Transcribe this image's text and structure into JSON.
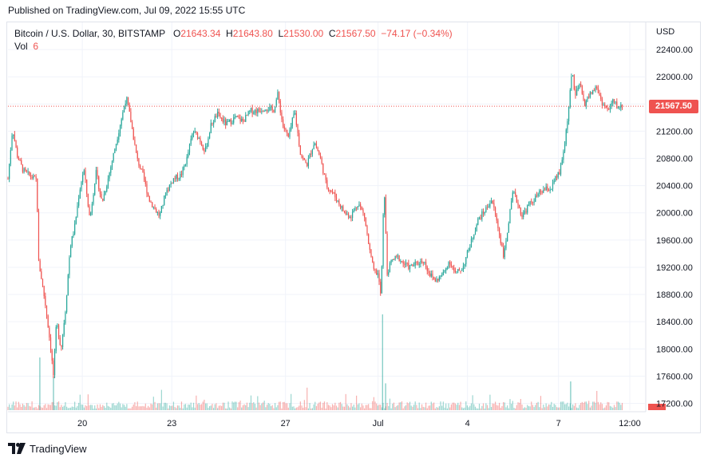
{
  "header": {
    "published": "Published on TradingView.com, Jul 09, 2022 15:55 UTC"
  },
  "legend": {
    "symbol": "Bitcoin / U.S. Dollar, 30, BITSTAMP",
    "o_label": "O",
    "o_value": "21643.34",
    "h_label": "H",
    "h_value": "21643.80",
    "l_label": "L",
    "l_value": "21530.00",
    "c_label": "C",
    "c_value": "21567.50",
    "change": "−74.17 (−0.34%)",
    "vol_label": "Vol",
    "vol_value": "6"
  },
  "axis": {
    "currency": "USD"
  },
  "footer": {
    "brand": "TradingView"
  },
  "colors": {
    "up": "#26a69a",
    "down": "#ef5350",
    "grid": "#f0f3fa"
  },
  "chart_data": {
    "type": "candlestick",
    "symbol": "Bitcoin / U.S. Dollar, 30, BITSTAMP",
    "current_price": 21567.5,
    "current_price_label": "21567.50",
    "y_axis": {
      "ticks": [
        22400,
        22000,
        21600,
        21200,
        20800,
        20400,
        20000,
        19600,
        19200,
        18800,
        18400,
        18000,
        17600,
        17200
      ],
      "tick_labels": [
        "22400.00",
        "22000.00",
        "21600.00",
        "21200.00",
        "20800.00",
        "20400.00",
        "20000.00",
        "19600.00",
        "19200.00",
        "18800.00",
        "18400.00",
        "18000.00",
        "17600.00",
        "17200.00"
      ],
      "ylim": [
        17100,
        22800
      ]
    },
    "x_axis": {
      "tick_labels": [
        "20",
        "23",
        "27",
        "Jul",
        "4",
        "7",
        "12:00"
      ],
      "tick_positions_days": [
        2.45,
        5.4,
        9.15,
        12.2,
        15.15,
        18.15,
        20.5
      ],
      "xlim": [
        0,
        21.0
      ]
    },
    "price_path": [
      [
        0.0,
        20500
      ],
      [
        0.15,
        21250
      ],
      [
        0.3,
        20850
      ],
      [
        0.5,
        20620
      ],
      [
        0.8,
        20520
      ],
      [
        0.95,
        20480
      ],
      [
        1.0,
        19300
      ],
      [
        1.1,
        19050
      ],
      [
        1.25,
        18600
      ],
      [
        1.4,
        18050
      ],
      [
        1.5,
        17600
      ],
      [
        1.6,
        18400
      ],
      [
        1.75,
        18000
      ],
      [
        1.9,
        18600
      ],
      [
        2.05,
        19500
      ],
      [
        2.2,
        19800
      ],
      [
        2.35,
        20300
      ],
      [
        2.5,
        20650
      ],
      [
        2.7,
        19900
      ],
      [
        2.9,
        20600
      ],
      [
        3.1,
        20150
      ],
      [
        3.3,
        20500
      ],
      [
        3.55,
        21000
      ],
      [
        3.75,
        21400
      ],
      [
        3.9,
        21700
      ],
      [
        4.05,
        21350
      ],
      [
        4.25,
        20800
      ],
      [
        4.45,
        20550
      ],
      [
        4.65,
        20200
      ],
      [
        4.85,
        20050
      ],
      [
        5.0,
        19950
      ],
      [
        5.2,
        20300
      ],
      [
        5.45,
        20500
      ],
      [
        5.7,
        20550
      ],
      [
        5.9,
        20800
      ],
      [
        6.1,
        21200
      ],
      [
        6.3,
        21100
      ],
      [
        6.5,
        20900
      ],
      [
        6.7,
        21300
      ],
      [
        6.9,
        21450
      ],
      [
        7.2,
        21300
      ],
      [
        7.5,
        21400
      ],
      [
        7.75,
        21350
      ],
      [
        8.0,
        21500
      ],
      [
        8.25,
        21500
      ],
      [
        8.5,
        21550
      ],
      [
        8.75,
        21500
      ],
      [
        8.9,
        21750
      ],
      [
        9.05,
        21300
      ],
      [
        9.25,
        21100
      ],
      [
        9.45,
        21500
      ],
      [
        9.65,
        20850
      ],
      [
        9.85,
        20700
      ],
      [
        10.1,
        21050
      ],
      [
        10.3,
        20800
      ],
      [
        10.5,
        20400
      ],
      [
        10.7,
        20300
      ],
      [
        10.9,
        20150
      ],
      [
        11.1,
        20000
      ],
      [
        11.3,
        19950
      ],
      [
        11.55,
        20150
      ],
      [
        11.75,
        19950
      ],
      [
        11.9,
        19500
      ],
      [
        12.05,
        19150
      ],
      [
        12.2,
        19100
      ],
      [
        12.3,
        18750
      ],
      [
        12.4,
        20450
      ],
      [
        12.5,
        19100
      ],
      [
        12.65,
        19300
      ],
      [
        12.85,
        19350
      ],
      [
        13.05,
        19250
      ],
      [
        13.25,
        19200
      ],
      [
        13.45,
        19250
      ],
      [
        13.7,
        19300
      ],
      [
        13.9,
        19100
      ],
      [
        14.1,
        19000
      ],
      [
        14.35,
        19100
      ],
      [
        14.55,
        19300
      ],
      [
        14.75,
        19100
      ],
      [
        15.0,
        19200
      ],
      [
        15.25,
        19550
      ],
      [
        15.5,
        19900
      ],
      [
        15.75,
        20050
      ],
      [
        15.95,
        20200
      ],
      [
        16.15,
        19800
      ],
      [
        16.35,
        19350
      ],
      [
        16.5,
        19850
      ],
      [
        16.65,
        20300
      ],
      [
        16.8,
        20150
      ],
      [
        16.95,
        19950
      ],
      [
        17.15,
        20100
      ],
      [
        17.35,
        20200
      ],
      [
        17.55,
        20300
      ],
      [
        17.75,
        20350
      ],
      [
        17.9,
        20350
      ],
      [
        18.05,
        20500
      ],
      [
        18.2,
        20600
      ],
      [
        18.35,
        21000
      ],
      [
        18.5,
        21600
      ],
      [
        18.6,
        22100
      ],
      [
        18.7,
        21700
      ],
      [
        18.85,
        21900
      ],
      [
        19.0,
        21600
      ],
      [
        19.2,
        21750
      ],
      [
        19.4,
        21850
      ],
      [
        19.6,
        21600
      ],
      [
        19.8,
        21500
      ],
      [
        19.95,
        21650
      ],
      [
        20.1,
        21550
      ],
      [
        20.25,
        21567.5
      ]
    ],
    "volume_spikes": [
      {
        "x_day": 1.05,
        "rel": 0.55
      },
      {
        "x_day": 1.5,
        "rel": 0.35
      },
      {
        "x_day": 12.35,
        "rel": 1.0
      },
      {
        "x_day": 12.45,
        "rel": 0.28
      },
      {
        "x_day": 18.55,
        "rel": 0.3
      }
    ]
  }
}
